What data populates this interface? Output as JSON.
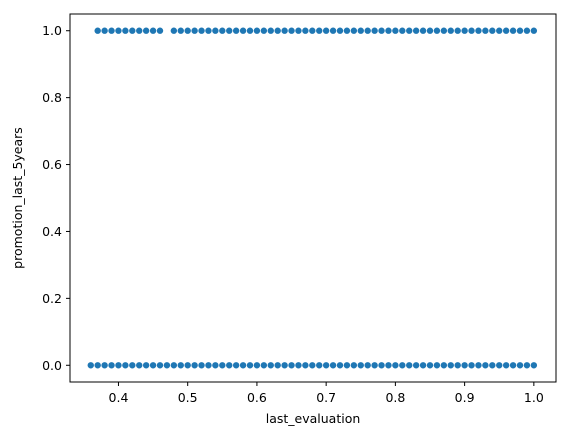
{
  "chart_data": {
    "type": "scatter",
    "title": "",
    "xlabel": "last_evaluation",
    "ylabel": "promotion_last_5years",
    "xlim": [
      0.33,
      1.032
    ],
    "ylim": [
      -0.05,
      1.05
    ],
    "x_ticks": [
      0.4,
      0.5,
      0.6,
      0.7,
      0.8,
      0.9,
      1.0
    ],
    "x_tick_labels": [
      "0.4",
      "0.5",
      "0.6",
      "0.7",
      "0.8",
      "0.9",
      "1.0"
    ],
    "y_ticks": [
      0.0,
      0.2,
      0.4,
      0.6,
      0.8,
      1.0
    ],
    "y_tick_labels": [
      "0.0",
      "0.2",
      "0.4",
      "0.6",
      "0.8",
      "1.0"
    ],
    "grid": false,
    "legend": "none",
    "marker_color": "#1f77b4",
    "series": [
      {
        "points": {
          "y": 0,
          "x_range": [
            0.36,
            1.0
          ],
          "x_step": 0.01
        }
      },
      {
        "points": {
          "y": 1,
          "x_values": [
            0.37,
            0.38,
            0.39,
            0.4,
            0.41,
            0.42,
            0.43,
            0.44,
            0.45,
            0.46,
            0.48,
            0.49,
            0.5,
            0.51,
            0.52,
            0.53,
            0.54,
            0.55,
            0.56,
            0.57,
            0.58,
            0.59,
            0.6,
            0.61,
            0.62,
            0.63,
            0.64,
            0.65,
            0.66,
            0.67,
            0.68,
            0.69,
            0.7,
            0.71,
            0.72,
            0.73,
            0.74,
            0.75,
            0.76,
            0.77,
            0.78,
            0.79,
            0.8,
            0.81,
            0.82,
            0.83,
            0.84,
            0.85,
            0.86,
            0.87,
            0.88,
            0.89,
            0.9,
            0.91,
            0.92,
            0.93,
            0.94,
            0.95,
            0.96,
            0.97,
            0.98,
            0.99,
            1.0
          ]
        }
      }
    ]
  }
}
